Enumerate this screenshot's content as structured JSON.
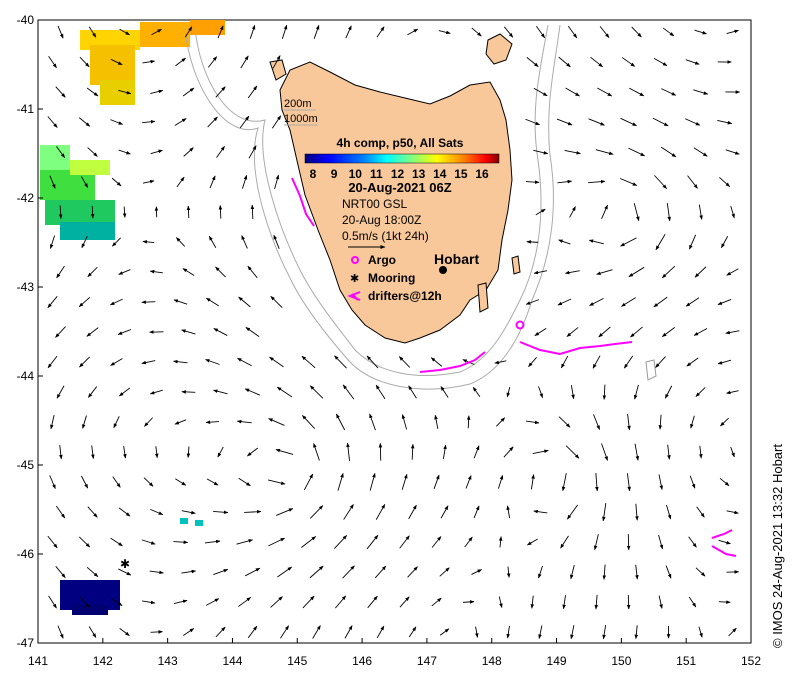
{
  "map": {
    "lon_ticks": [
      "141",
      "142",
      "143",
      "144",
      "145",
      "146",
      "147",
      "148",
      "149",
      "150",
      "151",
      "152"
    ],
    "lat_ticks": [
      "-40",
      "-41",
      "-42",
      "-43",
      "-44",
      "-45",
      "-46",
      "-47"
    ],
    "lon_range": [
      141,
      152
    ],
    "lat_range": [
      -47,
      -40
    ],
    "land_color": "#f8c89a",
    "ocean_color": "#ffffff"
  },
  "bathymetry_legend": {
    "line1": "200m",
    "line2": "1000m"
  },
  "sst": {
    "title": "4h comp, p50, All Sats",
    "colorbar_ticks": [
      "8",
      "9",
      "10",
      "11",
      "12",
      "13",
      "14",
      "15",
      "16"
    ],
    "colorbar_colors": [
      "#00007f",
      "#0000ff",
      "#007fff",
      "#00ffff",
      "#7fff7f",
      "#ffff00",
      "#ff7f00",
      "#ff0000",
      "#7f0000"
    ],
    "date": "20-Aug-2021 06Z"
  },
  "currents": {
    "product": "NRT00 GSL",
    "time": "20-Aug 18:00Z",
    "scale": "0.5m/s (1kt 24h)"
  },
  "legend": {
    "argo": "Argo",
    "mooring": "Mooring",
    "drifters": "drifters@12h"
  },
  "place": {
    "name": "Hobart"
  },
  "credit": "© IMOS 24-Aug-2021 13:32 Hobart"
}
